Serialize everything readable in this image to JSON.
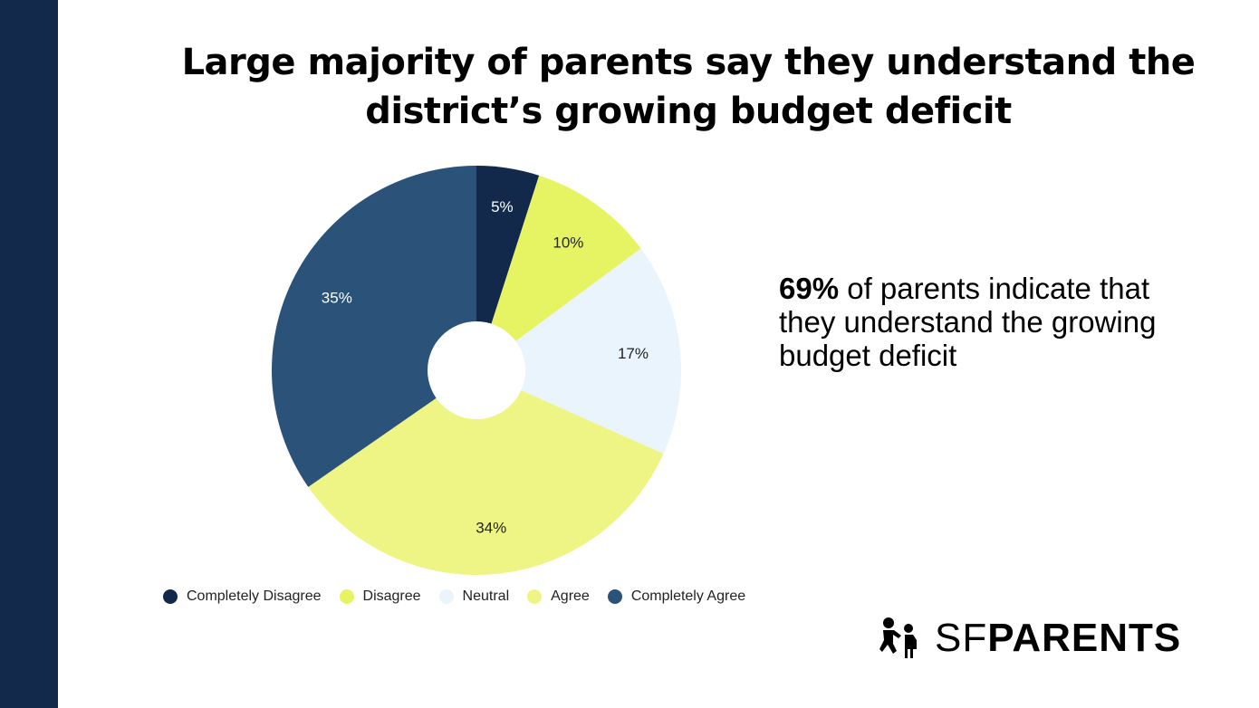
{
  "title": "Large majority of parents say they understand the district’s  growing budget deficit",
  "callout": {
    "bold": "69%",
    "text": " of parents indicate that they understand the growing budget deficit"
  },
  "logo": {
    "light": "SF",
    "bold": "PARENTS"
  },
  "chart_data": {
    "type": "pie",
    "donut": true,
    "start": "top, clockwise",
    "legend_position": "bottom",
    "categories": [
      "Completely Disagree",
      "Disagree",
      "Neutral",
      "Agree",
      "Completely Agree"
    ],
    "values": [
      5,
      10,
      17,
      34,
      35
    ],
    "labels": [
      "5%",
      "10%",
      "17%",
      "34%",
      "35%"
    ],
    "colors": [
      "#13294b",
      "#e6f464",
      "#eaf4fc",
      "#eef585",
      "#2b5278"
    ],
    "label_colors": [
      "#ffffff",
      "#222222",
      "#222222",
      "#222222",
      "#ffffff"
    ]
  }
}
